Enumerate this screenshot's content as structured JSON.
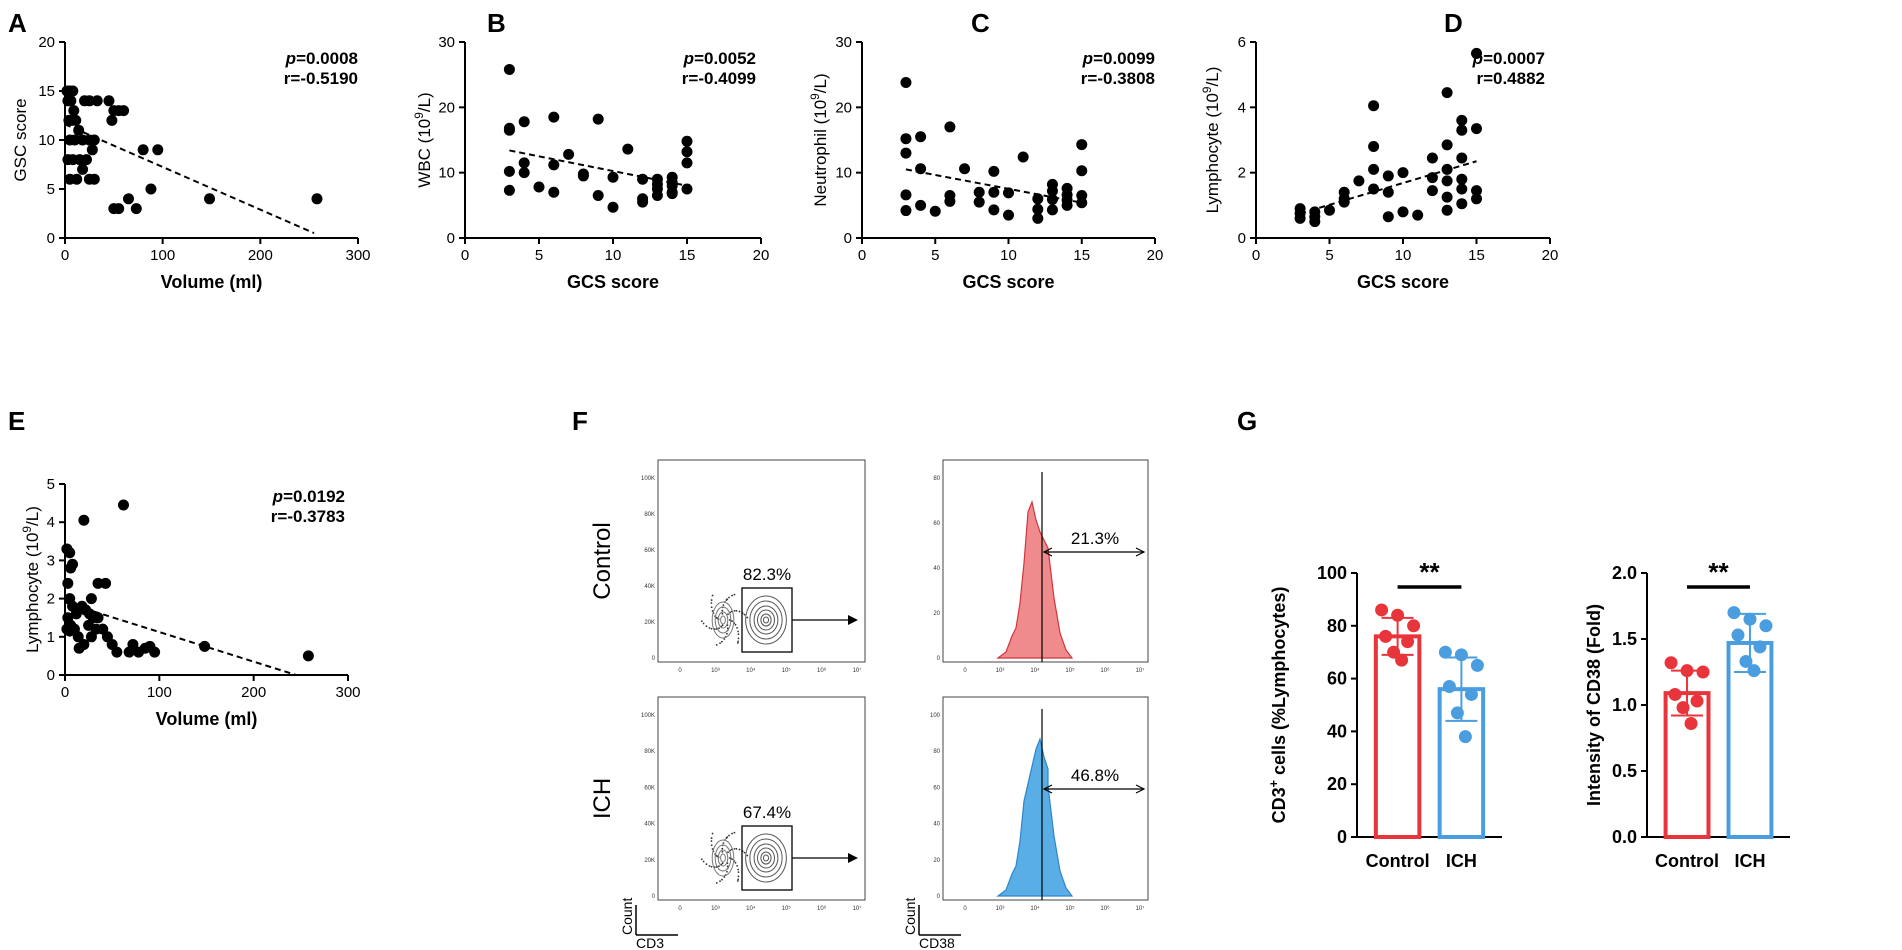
{
  "chart_data": [
    {
      "panel": "A",
      "type": "scatter",
      "xlabel": "Volume (ml)",
      "ylabel": "GSC score",
      "xlim": [
        0,
        300
      ],
      "ylim": [
        0,
        20
      ],
      "xticks": [
        "0",
        "100",
        "200",
        "300"
      ],
      "yticks": [
        "0",
        "5",
        "10",
        "15",
        "20"
      ],
      "p": "=0.0008",
      "r": "r=-0.5190",
      "trend": [
        [
          0,
          11.6
        ],
        [
          255,
          0.5
        ]
      ],
      "points": [
        [
          2,
          15
        ],
        [
          5,
          15
        ],
        [
          8,
          15
        ],
        [
          3,
          14
        ],
        [
          6,
          14
        ],
        [
          9,
          13
        ],
        [
          4,
          12
        ],
        [
          7,
          12
        ],
        [
          11,
          12
        ],
        [
          14,
          11
        ],
        [
          5,
          10
        ],
        [
          10,
          10
        ],
        [
          18,
          10
        ],
        [
          25,
          10
        ],
        [
          30,
          10
        ],
        [
          3,
          8
        ],
        [
          8,
          8
        ],
        [
          15,
          8
        ],
        [
          22,
          8
        ],
        [
          28,
          9
        ],
        [
          5,
          6
        ],
        [
          12,
          6
        ],
        [
          18,
          7
        ],
        [
          25,
          6
        ],
        [
          30,
          6
        ],
        [
          20,
          14
        ],
        [
          25,
          14
        ],
        [
          33,
          14
        ],
        [
          45,
          14
        ],
        [
          50,
          13
        ],
        [
          55,
          13
        ],
        [
          48,
          12
        ],
        [
          60,
          13
        ],
        [
          65,
          4
        ],
        [
          73,
          3
        ],
        [
          50,
          3
        ],
        [
          55,
          3
        ],
        [
          80,
          9
        ],
        [
          95,
          9
        ],
        [
          88,
          5
        ],
        [
          148,
          4
        ],
        [
          258,
          4
        ]
      ]
    },
    {
      "panel": "B",
      "type": "scatter",
      "xlabel": "GCS score",
      "ylabel": "WBC (10⁹/L)",
      "xlim": [
        0,
        20
      ],
      "ylim": [
        0,
        30
      ],
      "xticks": [
        "0",
        "5",
        "10",
        "15",
        "20"
      ],
      "yticks": [
        "0",
        "10",
        "20",
        "30"
      ],
      "p": "=0.0052",
      "r": "r=-0.4099",
      "trend": [
        [
          3,
          13.4
        ],
        [
          15,
          8.0
        ]
      ],
      "points": [
        [
          3,
          25.8
        ],
        [
          3,
          16.5
        ],
        [
          3,
          10.2
        ],
        [
          3,
          7.3
        ],
        [
          3,
          16.8
        ],
        [
          4,
          17.8
        ],
        [
          4,
          11.5
        ],
        [
          4,
          10.0
        ],
        [
          5,
          7.8
        ],
        [
          6,
          18.5
        ],
        [
          6,
          11.2
        ],
        [
          6,
          7.0
        ],
        [
          7,
          12.8
        ],
        [
          8,
          9.5
        ],
        [
          8,
          9.8
        ],
        [
          9,
          18.2
        ],
        [
          9,
          6.5
        ],
        [
          10,
          9.3
        ],
        [
          10,
          4.7
        ],
        [
          11,
          13.6
        ],
        [
          12,
          6.0
        ],
        [
          12,
          5.5
        ],
        [
          12,
          9.0
        ],
        [
          13,
          8.2
        ],
        [
          13,
          7.5
        ],
        [
          13,
          6.5
        ],
        [
          13,
          9.0
        ],
        [
          14,
          8.5
        ],
        [
          14,
          8.0
        ],
        [
          14,
          7.0
        ],
        [
          14,
          6.8
        ],
        [
          14,
          9.3
        ],
        [
          15,
          14.8
        ],
        [
          15,
          13.2
        ],
        [
          15,
          11.5
        ],
        [
          15,
          7.5
        ]
      ]
    },
    {
      "panel": "C",
      "type": "scatter",
      "xlabel": "GCS score",
      "ylabel": "Neutrophil (10⁹/L)",
      "xlim": [
        0,
        20
      ],
      "ylim": [
        0,
        30
      ],
      "xticks": [
        "0",
        "5",
        "10",
        "15",
        "20"
      ],
      "yticks": [
        "0",
        "10",
        "20",
        "30"
      ],
      "p": "=0.0099",
      "r": "r=-0.3808",
      "trend": [
        [
          3,
          10.5
        ],
        [
          15,
          5.4
        ]
      ],
      "points": [
        [
          3,
          23.8
        ],
        [
          3,
          15.2
        ],
        [
          3,
          13.0
        ],
        [
          3,
          6.6
        ],
        [
          3,
          4.2
        ],
        [
          4,
          15.5
        ],
        [
          4,
          10.6
        ],
        [
          4,
          5.0
        ],
        [
          5,
          4.1
        ],
        [
          6,
          17.0
        ],
        [
          6,
          6.5
        ],
        [
          6,
          5.6
        ],
        [
          7,
          10.6
        ],
        [
          8,
          7.0
        ],
        [
          8,
          5.5
        ],
        [
          9,
          10.2
        ],
        [
          9,
          7.0
        ],
        [
          9,
          4.3
        ],
        [
          10,
          6.9
        ],
        [
          10,
          3.5
        ],
        [
          11,
          12.4
        ],
        [
          12,
          4.4
        ],
        [
          12,
          3.0
        ],
        [
          12,
          6.0
        ],
        [
          13,
          8.2
        ],
        [
          13,
          7.2
        ],
        [
          13,
          5.9
        ],
        [
          13,
          4.3
        ],
        [
          14,
          7.6
        ],
        [
          14,
          6.6
        ],
        [
          14,
          5.8
        ],
        [
          14,
          5.0
        ],
        [
          15,
          14.3
        ],
        [
          15,
          10.3
        ],
        [
          15,
          6.5
        ],
        [
          15,
          5.4
        ]
      ]
    },
    {
      "panel": "D",
      "type": "scatter",
      "xlabel": "GCS score",
      "ylabel": "Lymphocyte (10⁹/L)",
      "xlim": [
        0,
        20
      ],
      "ylim": [
        0,
        6
      ],
      "xticks": [
        "0",
        "5",
        "10",
        "15",
        "20"
      ],
      "yticks": [
        "0",
        "2",
        "4",
        "6"
      ],
      "p": "=0.0007",
      "r": "r=0.4882",
      "trend": [
        [
          3,
          0.75
        ],
        [
          15,
          2.35
        ]
      ],
      "points": [
        [
          3,
          0.9
        ],
        [
          3,
          0.75
        ],
        [
          3,
          0.6
        ],
        [
          4,
          0.8
        ],
        [
          4,
          0.65
        ],
        [
          4,
          0.5
        ],
        [
          5,
          0.85
        ],
        [
          6,
          1.4
        ],
        [
          6,
          1.2
        ],
        [
          6,
          1.1
        ],
        [
          7,
          1.75
        ],
        [
          8,
          4.05
        ],
        [
          8,
          2.8
        ],
        [
          8,
          2.1
        ],
        [
          8,
          1.5
        ],
        [
          9,
          1.9
        ],
        [
          9,
          1.4
        ],
        [
          9,
          0.65
        ],
        [
          10,
          2.0
        ],
        [
          10,
          0.8
        ],
        [
          11,
          0.7
        ],
        [
          12,
          2.45
        ],
        [
          12,
          1.85
        ],
        [
          12,
          1.45
        ],
        [
          13,
          4.45
        ],
        [
          13,
          2.85
        ],
        [
          13,
          2.1
        ],
        [
          13,
          1.75
        ],
        [
          13,
          1.25
        ],
        [
          13,
          0.85
        ],
        [
          14,
          3.6
        ],
        [
          14,
          3.3
        ],
        [
          14,
          2.45
        ],
        [
          14,
          1.8
        ],
        [
          14,
          1.5
        ],
        [
          14,
          1.05
        ],
        [
          15,
          5.65
        ],
        [
          15,
          3.35
        ],
        [
          15,
          1.45
        ],
        [
          15,
          1.2
        ]
      ]
    },
    {
      "panel": "E",
      "type": "scatter",
      "xlabel": "Volume (ml)",
      "ylabel": "Lymphocyte (10⁹/L)",
      "xlim": [
        0,
        300
      ],
      "ylim": [
        0,
        5
      ],
      "xticks": [
        "0",
        "100",
        "200",
        "300"
      ],
      "yticks": [
        "0",
        "1",
        "2",
        "3",
        "4",
        "5"
      ],
      "p": "=0.0192",
      "r": "r=-0.3783",
      "trend": [
        [
          0,
          1.9
        ],
        [
          245,
          0.0
        ]
      ],
      "points": [
        [
          2,
          3.3
        ],
        [
          5,
          3.2
        ],
        [
          6,
          2.8
        ],
        [
          8,
          2.9
        ],
        [
          3,
          2.4
        ],
        [
          5,
          2.0
        ],
        [
          8,
          1.8
        ],
        [
          12,
          1.6
        ],
        [
          3,
          1.5
        ],
        [
          6,
          1.3
        ],
        [
          10,
          1.2
        ],
        [
          14,
          1.0
        ],
        [
          2,
          1.2
        ],
        [
          5,
          1.15
        ],
        [
          18,
          1.8
        ],
        [
          22,
          1.7
        ],
        [
          26,
          1.6
        ],
        [
          30,
          1.5
        ],
        [
          35,
          1.5
        ],
        [
          15,
          0.7
        ],
        [
          20,
          0.8
        ],
        [
          25,
          1.3
        ],
        [
          28,
          1.0
        ],
        [
          33,
          1.2
        ],
        [
          35,
          2.4
        ],
        [
          43,
          2.4
        ],
        [
          28,
          2.0
        ],
        [
          40,
          1.2
        ],
        [
          45,
          1.0
        ],
        [
          50,
          0.8
        ],
        [
          55,
          0.6
        ],
        [
          62,
          4.45
        ],
        [
          68,
          0.6
        ],
        [
          72,
          0.8
        ],
        [
          78,
          0.6
        ],
        [
          85,
          0.7
        ],
        [
          90,
          0.75
        ],
        [
          95,
          0.6
        ],
        [
          20,
          4.05
        ],
        [
          148,
          0.75
        ],
        [
          258,
          0.5
        ]
      ]
    },
    {
      "panel": "G1",
      "type": "bar",
      "ylabel": "CD3⁺ cells (%Lymphocytes)",
      "categories": [
        "Control",
        "ICH"
      ],
      "values": [
        76,
        56
      ],
      "errors": [
        7,
        12
      ],
      "ylim": [
        0,
        100
      ],
      "yticks": [
        "0",
        "20",
        "40",
        "60",
        "80",
        "100"
      ],
      "colors": [
        "#e8353c",
        "#4a9ee0"
      ],
      "significance": "**",
      "points": [
        [
          86,
          84,
          80,
          76,
          74,
          70,
          67
        ],
        [
          70,
          69,
          65,
          57,
          54,
          47,
          38
        ]
      ]
    },
    {
      "panel": "G2",
      "type": "bar",
      "ylabel": "Intensity of CD38 (Fold)",
      "categories": [
        "Control",
        "ICH"
      ],
      "values": [
        1.09,
        1.47
      ],
      "errors": [
        0.17,
        0.22
      ],
      "ylim": [
        0,
        2.0
      ],
      "yticks": [
        "0.0",
        "0.5",
        "1.0",
        "1.5",
        "2.0"
      ],
      "colors": [
        "#e8353c",
        "#4a9ee0"
      ],
      "significance": "**",
      "points": [
        [
          1.32,
          1.26,
          1.25,
          1.08,
          1.03,
          0.98,
          0.86
        ],
        [
          1.7,
          1.65,
          1.6,
          1.53,
          1.44,
          1.33,
          1.26
        ]
      ]
    }
  ],
  "panel_labels": {
    "A": "A",
    "B": "B",
    "C": "C",
    "D": "D",
    "E": "E",
    "F": "F",
    "G": "G"
  },
  "p_prefix": "p",
  "flow": {
    "rows": [
      "Control",
      "ICH"
    ],
    "contour_percent": [
      "82.3%",
      "67.4%"
    ],
    "histogram_percent": [
      "21.3%",
      "46.8%"
    ],
    "contour_yticks": [
      "100K",
      "80K",
      "60K",
      "40K",
      "20K",
      "0"
    ],
    "histogram_yticks": [
      [
        "80",
        "60",
        "40",
        "20",
        "0"
      ],
      [
        "100",
        "80",
        "60",
        "40",
        "20",
        "0"
      ]
    ],
    "x_ticks": [
      "0",
      "10³",
      "10⁴",
      "10⁵",
      "10⁶",
      "10⁷"
    ],
    "x_axis_contour": "CD3",
    "x_axis_histogram": "CD38",
    "y_axis": "Count",
    "hist_colors": [
      "#f08b8d",
      "#5aaee6"
    ]
  }
}
